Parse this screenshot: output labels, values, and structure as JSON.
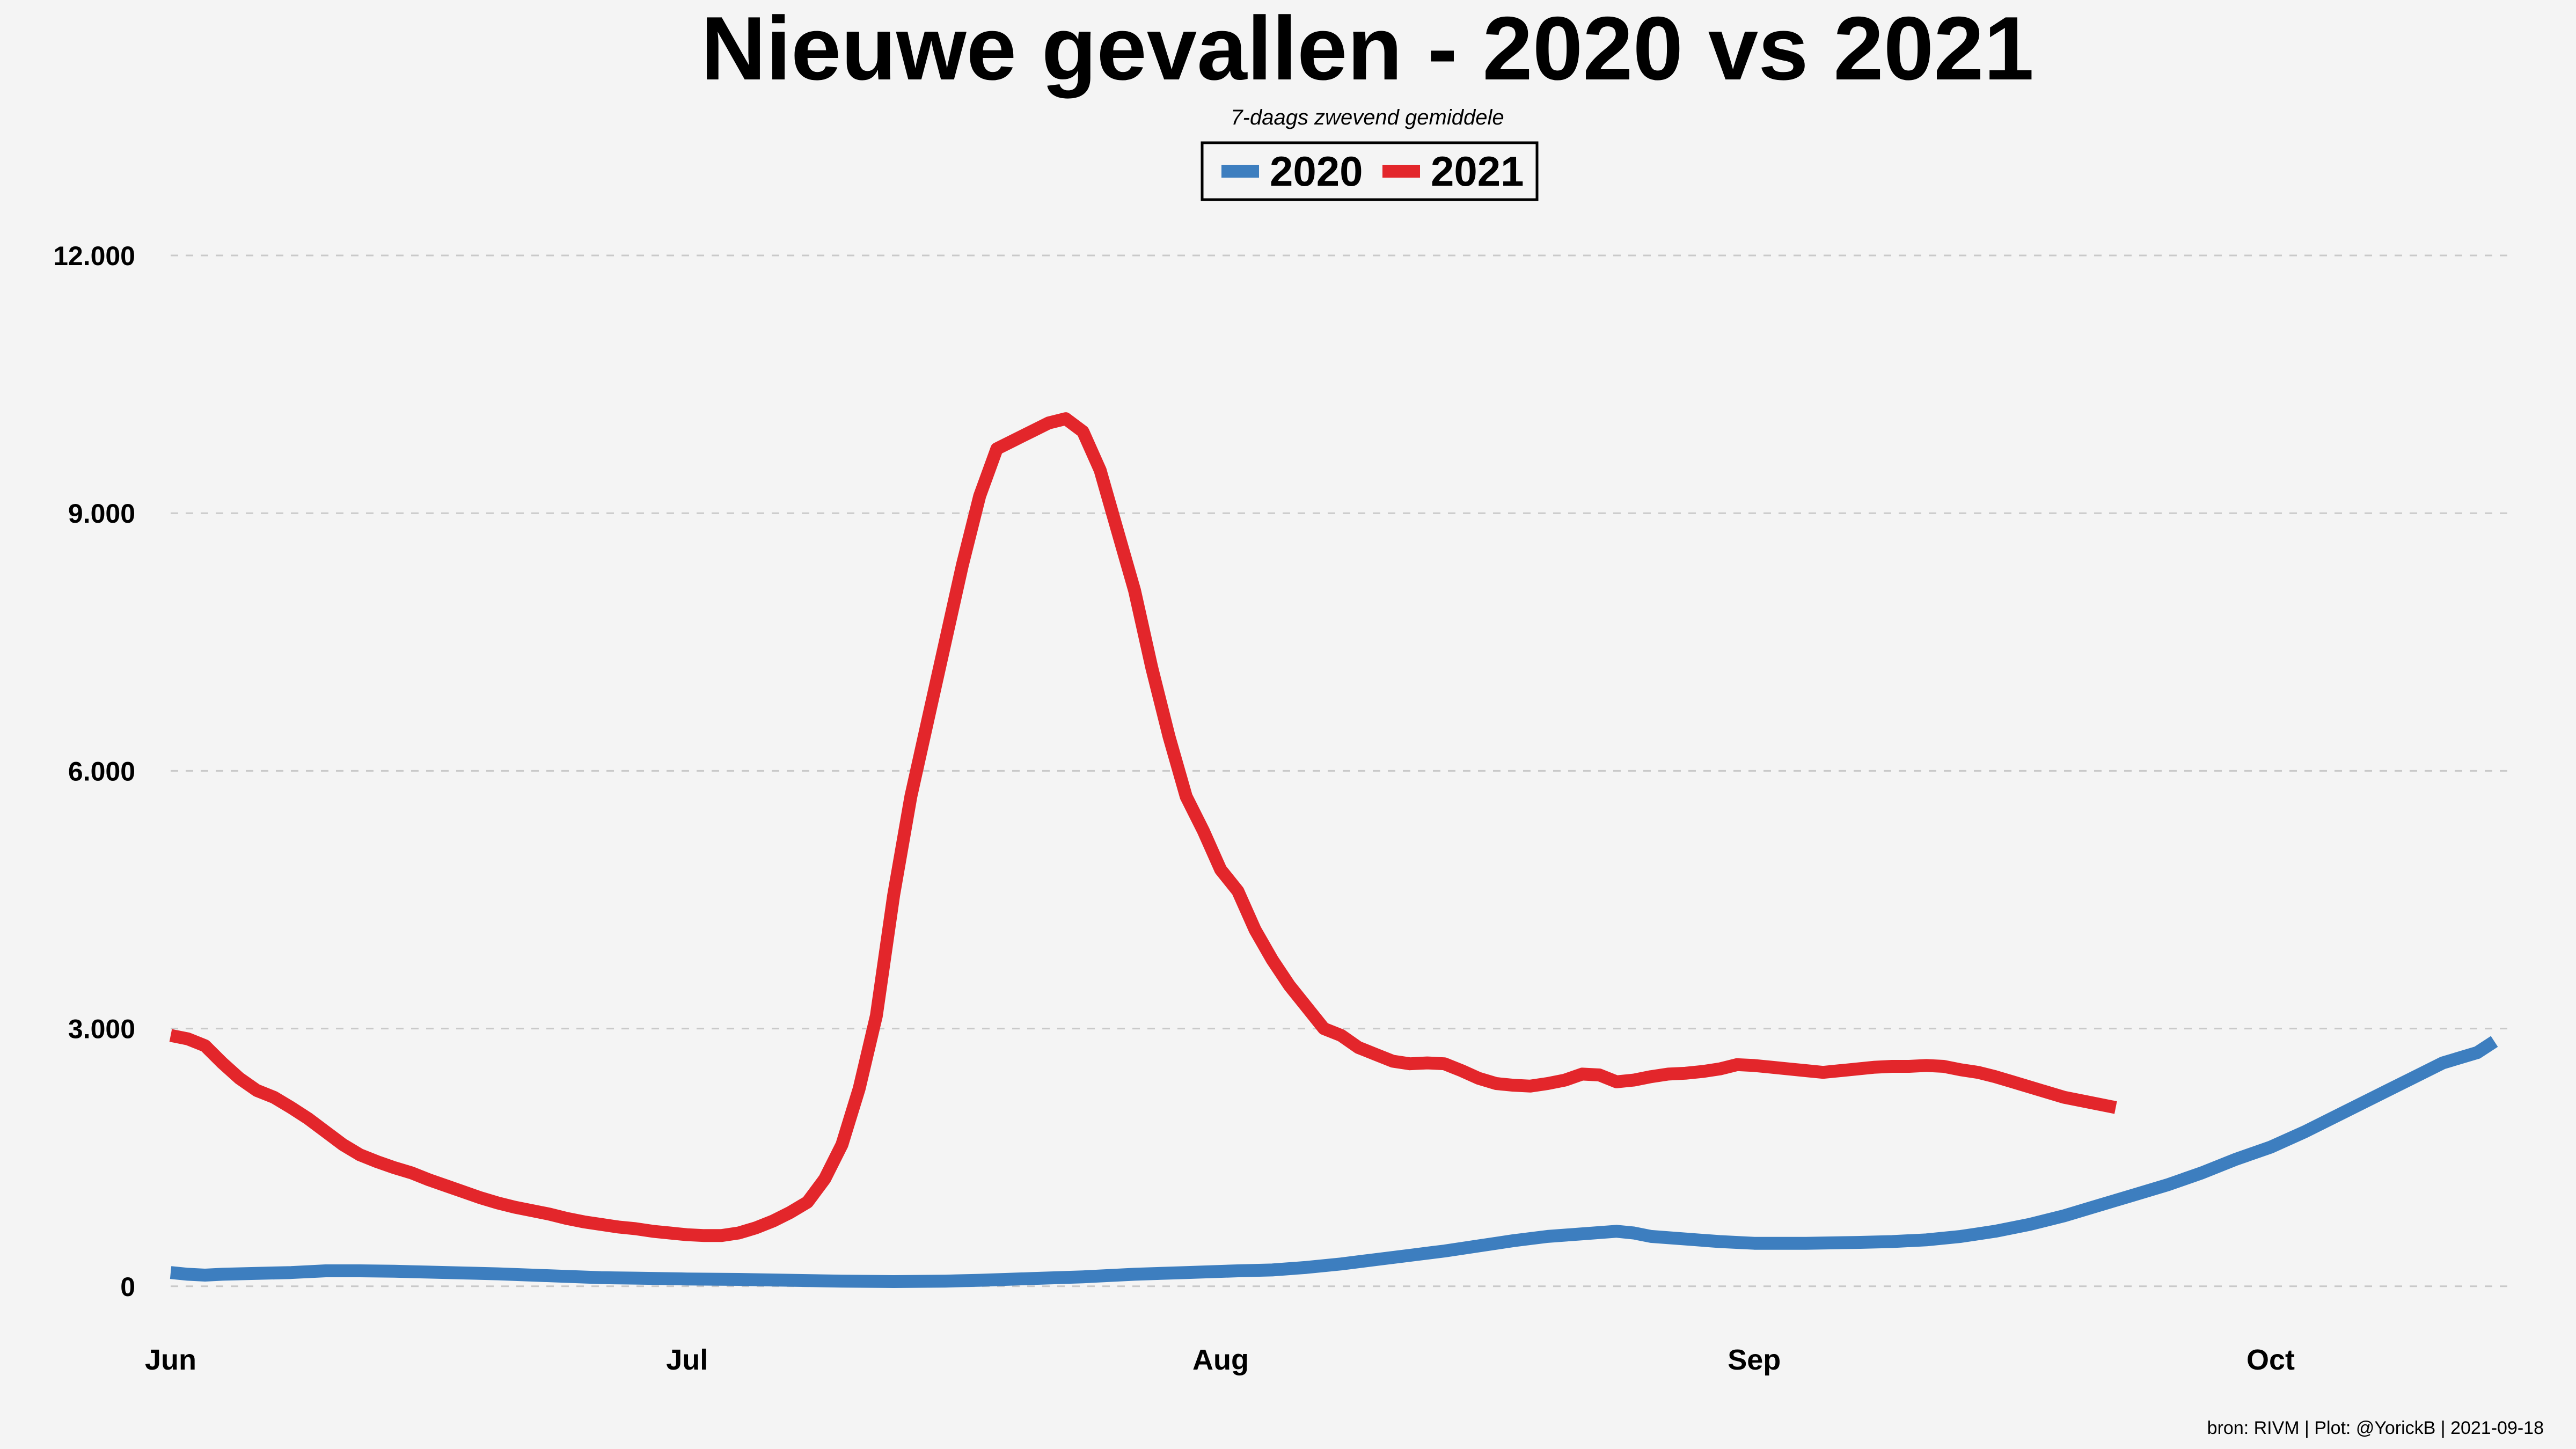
{
  "chart_data": {
    "type": "line",
    "title": "Nieuwe gevallen - 2020 vs 2021",
    "subtitle": "7-daags zwevend gemiddele",
    "caption": "bron: RIVM  | Plot: @YorickB |  2021-09-18",
    "xlabel": "",
    "ylabel": "",
    "x_ticks": [
      {
        "label": "Jun",
        "day": 0
      },
      {
        "label": "Jul",
        "day": 30
      },
      {
        "label": "Aug",
        "day": 61
      },
      {
        "label": "Sep",
        "day": 92
      },
      {
        "label": "Oct",
        "day": 122
      }
    ],
    "y_ticks": [
      {
        "label": "0",
        "value": 0
      },
      {
        "label": "3.000",
        "value": 3000
      },
      {
        "label": "6.000",
        "value": 6000
      },
      {
        "label": "9.000",
        "value": 9000
      },
      {
        "label": "12.000",
        "value": 12000
      }
    ],
    "ylim": [
      -520,
      12600
    ],
    "grid": "horizontal dashed",
    "legend_placement": "top-center",
    "series": [
      {
        "name": "2020",
        "color": "#3d7ebf",
        "points": [
          [
            0,
            160
          ],
          [
            1,
            140
          ],
          [
            2,
            130
          ],
          [
            3,
            140
          ],
          [
            5,
            150
          ],
          [
            7,
            160
          ],
          [
            9,
            180
          ],
          [
            11,
            180
          ],
          [
            13,
            175
          ],
          [
            15,
            165
          ],
          [
            17,
            155
          ],
          [
            19,
            145
          ],
          [
            21,
            130
          ],
          [
            23,
            115
          ],
          [
            25,
            100
          ],
          [
            27,
            95
          ],
          [
            30,
            85
          ],
          [
            33,
            80
          ],
          [
            36,
            70
          ],
          [
            39,
            60
          ],
          [
            42,
            55
          ],
          [
            45,
            60
          ],
          [
            47,
            70
          ],
          [
            50,
            90
          ],
          [
            53,
            110
          ],
          [
            56,
            140
          ],
          [
            59,
            160
          ],
          [
            62,
            180
          ],
          [
            64,
            190
          ],
          [
            66,
            220
          ],
          [
            68,
            260
          ],
          [
            70,
            310
          ],
          [
            72,
            360
          ],
          [
            74,
            410
          ],
          [
            76,
            470
          ],
          [
            78,
            530
          ],
          [
            80,
            580
          ],
          [
            82,
            610
          ],
          [
            84,
            640
          ],
          [
            85,
            620
          ],
          [
            86,
            580
          ],
          [
            88,
            550
          ],
          [
            90,
            520
          ],
          [
            92,
            500
          ],
          [
            95,
            500
          ],
          [
            98,
            510
          ],
          [
            100,
            520
          ],
          [
            102,
            540
          ],
          [
            104,
            580
          ],
          [
            106,
            640
          ],
          [
            108,
            720
          ],
          [
            110,
            820
          ],
          [
            112,
            940
          ],
          [
            114,
            1060
          ],
          [
            116,
            1180
          ],
          [
            118,
            1320
          ],
          [
            120,
            1480
          ],
          [
            122,
            1620
          ],
          [
            124,
            1800
          ],
          [
            126,
            2000
          ],
          [
            128,
            2200
          ],
          [
            130,
            2400
          ],
          [
            132,
            2600
          ],
          [
            134,
            2720
          ],
          [
            135,
            2850
          ]
        ]
      },
      {
        "name": "2021",
        "color": "#e3262b",
        "points": [
          [
            0,
            2920
          ],
          [
            1,
            2880
          ],
          [
            2,
            2800
          ],
          [
            3,
            2600
          ],
          [
            4,
            2420
          ],
          [
            5,
            2280
          ],
          [
            6,
            2200
          ],
          [
            7,
            2080
          ],
          [
            8,
            1950
          ],
          [
            9,
            1800
          ],
          [
            10,
            1650
          ],
          [
            11,
            1530
          ],
          [
            12,
            1450
          ],
          [
            13,
            1380
          ],
          [
            14,
            1320
          ],
          [
            15,
            1240
          ],
          [
            16,
            1170
          ],
          [
            17,
            1100
          ],
          [
            18,
            1030
          ],
          [
            19,
            970
          ],
          [
            20,
            920
          ],
          [
            21,
            880
          ],
          [
            22,
            840
          ],
          [
            23,
            790
          ],
          [
            24,
            750
          ],
          [
            25,
            720
          ],
          [
            26,
            690
          ],
          [
            27,
            670
          ],
          [
            28,
            640
          ],
          [
            29,
            620
          ],
          [
            30,
            600
          ],
          [
            31,
            590
          ],
          [
            32,
            590
          ],
          [
            33,
            620
          ],
          [
            34,
            680
          ],
          [
            35,
            760
          ],
          [
            36,
            860
          ],
          [
            37,
            980
          ],
          [
            38,
            1250
          ],
          [
            39,
            1650
          ],
          [
            40,
            2300
          ],
          [
            41,
            3150
          ],
          [
            42,
            4550
          ],
          [
            43,
            5700
          ],
          [
            44,
            6600
          ],
          [
            45,
            7500
          ],
          [
            46,
            8400
          ],
          [
            47,
            9200
          ],
          [
            48,
            9750
          ],
          [
            49,
            9850
          ],
          [
            50,
            9950
          ],
          [
            51,
            10050
          ],
          [
            52,
            10100
          ],
          [
            53,
            9950
          ],
          [
            54,
            9500
          ],
          [
            55,
            8800
          ],
          [
            56,
            8100
          ],
          [
            57,
            7200
          ],
          [
            58,
            6400
          ],
          [
            59,
            5700
          ],
          [
            60,
            5300
          ],
          [
            61,
            4850
          ],
          [
            62,
            4600
          ],
          [
            63,
            4150
          ],
          [
            64,
            3800
          ],
          [
            65,
            3500
          ],
          [
            66,
            3250
          ],
          [
            67,
            3000
          ],
          [
            68,
            2920
          ],
          [
            69,
            2780
          ],
          [
            70,
            2700
          ],
          [
            71,
            2620
          ],
          [
            72,
            2590
          ],
          [
            73,
            2600
          ],
          [
            74,
            2590
          ],
          [
            75,
            2510
          ],
          [
            76,
            2420
          ],
          [
            77,
            2360
          ],
          [
            78,
            2340
          ],
          [
            79,
            2330
          ],
          [
            80,
            2360
          ],
          [
            81,
            2400
          ],
          [
            82,
            2470
          ],
          [
            83,
            2460
          ],
          [
            84,
            2380
          ],
          [
            85,
            2400
          ],
          [
            86,
            2440
          ],
          [
            87,
            2470
          ],
          [
            88,
            2480
          ],
          [
            89,
            2500
          ],
          [
            90,
            2530
          ],
          [
            91,
            2580
          ],
          [
            92,
            2570
          ],
          [
            93,
            2550
          ],
          [
            94,
            2530
          ],
          [
            95,
            2510
          ],
          [
            96,
            2490
          ],
          [
            97,
            2510
          ],
          [
            98,
            2530
          ],
          [
            99,
            2550
          ],
          [
            100,
            2560
          ],
          [
            101,
            2560
          ],
          [
            102,
            2570
          ],
          [
            103,
            2560
          ],
          [
            104,
            2520
          ],
          [
            105,
            2490
          ],
          [
            106,
            2440
          ],
          [
            107,
            2380
          ],
          [
            108,
            2320
          ],
          [
            109,
            2260
          ],
          [
            110,
            2200
          ],
          [
            111,
            2160
          ],
          [
            112,
            2120
          ],
          [
            113,
            2080
          ]
        ]
      }
    ]
  }
}
